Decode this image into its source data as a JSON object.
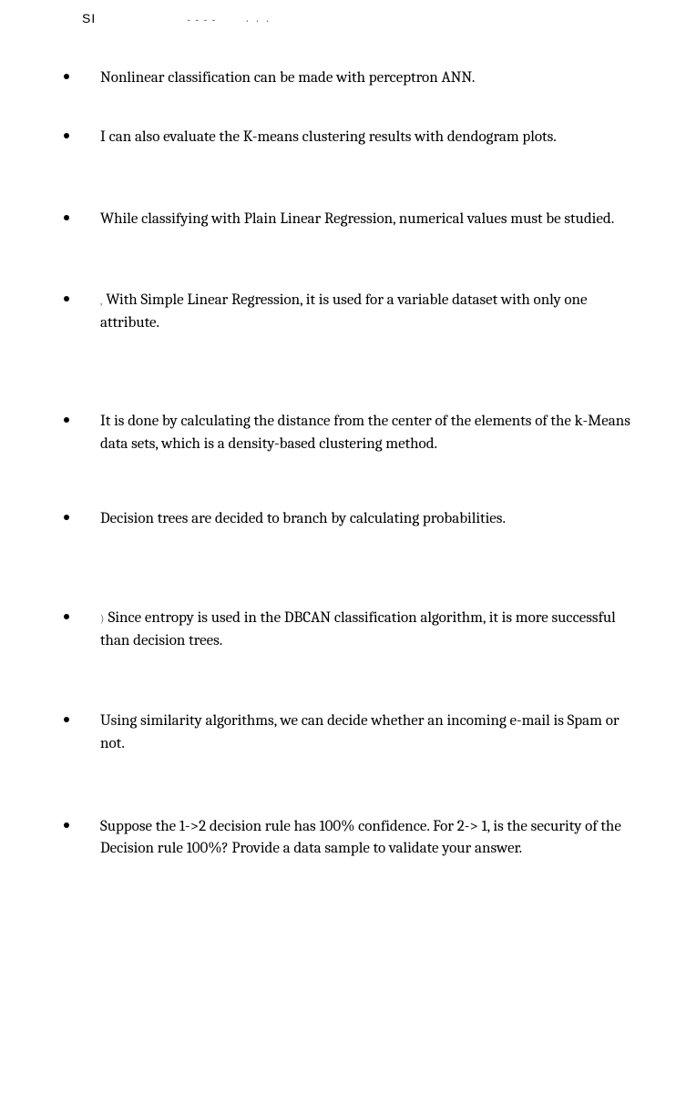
{
  "topMarks": {
    "si": "SI",
    "dashes": "- - - -",
    "dots": ". . ."
  },
  "items": [
    {
      "prefix": "",
      "text": "Nonlinear classification can be made with perceptron ANN."
    },
    {
      "prefix": "",
      "text": "I can also evaluate the K-means clustering results with dendogram plots."
    },
    {
      "prefix": "",
      "text": "While classifying with Plain Linear Regression, numerical values must be studied."
    },
    {
      "prefix": ",",
      "text": "With Simple Linear Regression, it is used for a variable dataset with only one attribute."
    },
    {
      "prefix": "",
      "text": "It is done by calculating the distance from the center of the elements of the k-Means data sets, which is a density-based clustering method."
    },
    {
      "prefix": "",
      "text": "Decision trees are decided to branch by calculating probabilities."
    },
    {
      "prefix": ")",
      "text": "Since entropy is used in the DBCAN classification algorithm, it is more successful than decision trees."
    },
    {
      "prefix": "",
      "text": "Using similarity algorithms, we can decide whether an incoming e-mail is Spam or not."
    },
    {
      "prefix": "",
      "text": "Suppose the 1->2 decision rule has 100% confidence. For 2-> 1, is the security of the Decision rule 100%? Provide a data sample to validate your answer."
    }
  ],
  "spacing": [
    40,
    66,
    64,
    84,
    58,
    84,
    64,
    66,
    0
  ],
  "style": {
    "background": "#ffffff",
    "fontColor": "#000000",
    "fontSize": 17,
    "fontFamily": "Cambria, Georgia, 'Times New Roman', serif",
    "bulletColor": "#000000",
    "bulletSize": 6
  }
}
